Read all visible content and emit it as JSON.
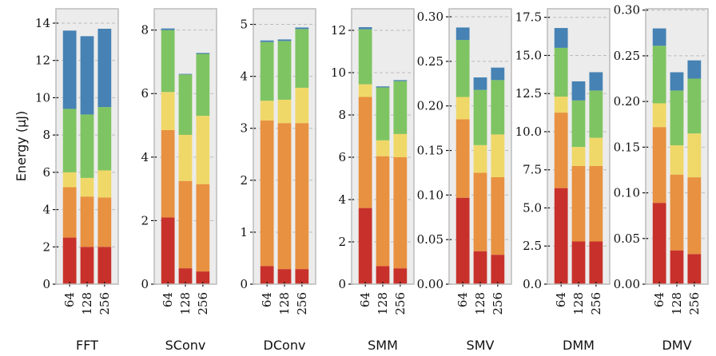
{
  "chart_data": {
    "type": "bar",
    "stacked": true,
    "ylabel": "Energy (μJ)",
    "categories": [
      "64",
      "128",
      "256"
    ],
    "segment_colors": [
      "#c8312b",
      "#e89140",
      "#f0d868",
      "#7fc462",
      "#4682b4"
    ],
    "background": "#ececec",
    "grid": true,
    "panels": [
      {
        "title": "FFT",
        "ylim": [
          0,
          14.77
        ],
        "yticks": [
          "0",
          "2",
          "4",
          "6",
          "8",
          "10",
          "12",
          "14"
        ],
        "ytick_values": [
          0,
          2,
          4,
          6,
          8,
          10,
          12,
          14
        ],
        "stacks": [
          [
            2.5,
            2.7,
            0.8,
            3.4,
            4.2
          ],
          [
            2.0,
            2.7,
            1.0,
            3.4,
            4.2
          ],
          [
            2.0,
            2.65,
            1.45,
            3.4,
            4.2
          ]
        ]
      },
      {
        "title": "SConv",
        "ylim": [
          0,
          8.67
        ],
        "yticks": [
          "0",
          "2",
          "4",
          "6",
          "8"
        ],
        "ytick_values": [
          0,
          2,
          4,
          6,
          8
        ],
        "stacks": [
          [
            2.1,
            2.75,
            1.2,
            1.95,
            0.05
          ],
          [
            0.5,
            2.75,
            1.45,
            1.9,
            0.02
          ],
          [
            0.4,
            2.75,
            2.15,
            1.95,
            0.03
          ]
        ]
      },
      {
        "title": "DConv",
        "ylim": [
          0,
          5.3
        ],
        "yticks": [
          "0",
          "1",
          "2",
          "3",
          "4",
          "5"
        ],
        "ytick_values": [
          0,
          1,
          2,
          3,
          4,
          5
        ],
        "stacks": [
          [
            0.35,
            2.8,
            0.38,
            1.13,
            0.03
          ],
          [
            0.29,
            2.81,
            0.45,
            1.13,
            0.03
          ],
          [
            0.29,
            2.81,
            0.68,
            1.13,
            0.03
          ]
        ]
      },
      {
        "title": "SMM",
        "ylim": [
          0,
          13.02
        ],
        "yticks": [
          "0",
          "2",
          "4",
          "6",
          "8",
          "10",
          "12"
        ],
        "ytick_values": [
          0,
          2,
          4,
          6,
          8,
          10,
          12
        ],
        "stacks": [
          [
            3.6,
            5.25,
            0.6,
            2.6,
            0.1
          ],
          [
            0.85,
            5.2,
            0.75,
            2.5,
            0.05
          ],
          [
            0.75,
            5.25,
            1.1,
            2.5,
            0.05
          ]
        ]
      },
      {
        "title": "SMV",
        "ylim": [
          0,
          0.309
        ],
        "yticks": [
          "0.00",
          "0.05",
          "0.10",
          "0.15",
          "0.20",
          "0.25",
          "0.30"
        ],
        "ytick_values": [
          0,
          0.05,
          0.1,
          0.15,
          0.2,
          0.25,
          0.3
        ],
        "stacks": [
          [
            0.097,
            0.088,
            0.025,
            0.064,
            0.014
          ],
          [
            0.037,
            0.088,
            0.031,
            0.062,
            0.014
          ],
          [
            0.033,
            0.087,
            0.048,
            0.061,
            0.014
          ]
        ]
      },
      {
        "title": "DMM",
        "ylim": [
          0,
          18.06
        ],
        "yticks": [
          "0.0",
          "2.5",
          "5.0",
          "7.5",
          "10.0",
          "12.5",
          "15.0",
          "17.5"
        ],
        "ytick_values": [
          0,
          2.5,
          5,
          7.5,
          10,
          12.5,
          15,
          17.5
        ],
        "stacks": [
          [
            6.3,
            4.95,
            1.05,
            3.2,
            1.3
          ],
          [
            2.8,
            4.95,
            1.25,
            3.05,
            1.25
          ],
          [
            2.8,
            4.95,
            1.85,
            3.1,
            1.2
          ]
        ]
      },
      {
        "title": "DMV",
        "ylim": [
          0,
          0.3015
        ],
        "yticks": [
          "0.00",
          "0.05",
          "0.10",
          "0.15",
          "0.20",
          "0.25",
          "0.30"
        ],
        "ytick_values": [
          0,
          0.05,
          0.1,
          0.15,
          0.2,
          0.25,
          0.3
        ],
        "stacks": [
          [
            0.089,
            0.083,
            0.026,
            0.063,
            0.019
          ],
          [
            0.037,
            0.083,
            0.032,
            0.06,
            0.02
          ],
          [
            0.033,
            0.084,
            0.048,
            0.06,
            0.02
          ]
        ]
      }
    ]
  }
}
